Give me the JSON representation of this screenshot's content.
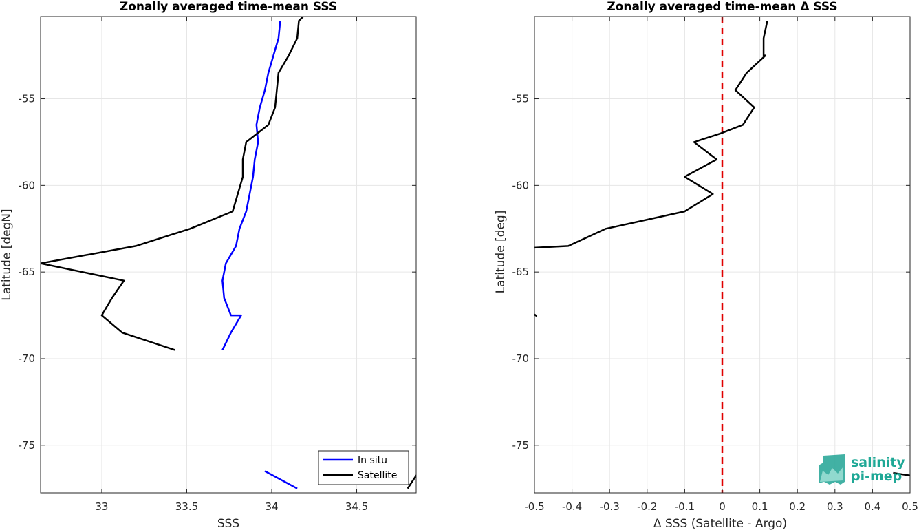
{
  "chart_data": [
    {
      "type": "line",
      "title": "Zonally averaged time-mean SSS",
      "xlabel": "SSS",
      "ylabel": "Latitude [degN]",
      "xlim": [
        32.64,
        34.85
      ],
      "ylim": [
        -77.75,
        -50.25
      ],
      "xticks": [
        33,
        33.5,
        34,
        34.5
      ],
      "xtick_labels": [
        "33",
        "33.5",
        "34",
        "34.5"
      ],
      "yticks": [
        -75,
        -70,
        -65,
        -60,
        -55
      ],
      "ytick_labels": [
        "-75",
        "-70",
        "-65",
        "-60",
        "-55"
      ],
      "grid": true,
      "legend_position": "bottom-right",
      "series": [
        {
          "name": "In situ",
          "color": "#0000ff",
          "segments": [
            {
              "x": [
                34.05,
                34.04,
                34.01,
                33.98,
                33.96,
                33.93,
                33.91,
                33.92,
                33.9,
                33.89,
                33.87,
                33.85,
                33.81,
                33.79,
                33.73,
                33.71,
                33.72,
                33.76,
                33.82,
                33.76,
                33.71
              ],
              "y": [
                -50.5,
                -51.5,
                -52.5,
                -53.5,
                -54.5,
                -55.5,
                -56.5,
                -57.5,
                -58.5,
                -59.5,
                -60.5,
                -61.5,
                -62.5,
                -63.5,
                -64.5,
                -65.5,
                -66.5,
                -67.5,
                -67.5,
                -68.5,
                -69.5
              ]
            },
            {
              "x": [
                33.96,
                34.15
              ],
              "y": [
                -76.5,
                -77.5
              ]
            }
          ]
        },
        {
          "name": "Satellite",
          "color": "#000000",
          "segments": [
            {
              "x": [
                34.21,
                34.16,
                34.15,
                34.1,
                34.04,
                34.02,
                33.98,
                33.85,
                33.83,
                33.83,
                33.77,
                33.52,
                33.2,
                32.64,
                33.13,
                33.06,
                33.0,
                33.12,
                33.43
              ],
              "y": [
                -50.0,
                -50.5,
                -51.5,
                -52.5,
                -53.5,
                -55.5,
                -56.5,
                -57.5,
                -58.5,
                -59.5,
                -61.5,
                -62.5,
                -63.5,
                -64.5,
                -65.5,
                -66.5,
                -67.5,
                -68.5,
                -69.5
              ]
            },
            {
              "x": [
                34.8,
                34.86
              ],
              "y": [
                -77.5,
                -76.6
              ]
            }
          ]
        }
      ]
    },
    {
      "type": "line",
      "title": "Zonally averaged time-mean Δ SSS",
      "xlabel": "Δ SSS (Satellite - Argo)",
      "ylabel": "Latitude [deg]",
      "xlim": [
        -0.5,
        0.5
      ],
      "ylim": [
        -77.75,
        -50.25
      ],
      "xticks": [
        -0.5,
        -0.4,
        -0.3,
        -0.2,
        -0.1,
        0,
        0.1,
        0.2,
        0.3,
        0.4,
        0.5
      ],
      "xtick_labels": [
        "-0.5",
        "-0.4",
        "-0.3",
        "-0.2",
        "-0.1",
        "0",
        "0.1",
        "0.2",
        "0.3",
        "0.4",
        "0.5"
      ],
      "yticks": [
        -75,
        -70,
        -65,
        -60,
        -55
      ],
      "ytick_labels": [
        "-75",
        "-70",
        "-65",
        "-60",
        "-55"
      ],
      "grid": true,
      "reference_line": {
        "x": 0,
        "color": "#e00000",
        "style": "dashed"
      },
      "series": [
        {
          "color": "#000000",
          "segments": [
            {
              "x": [
                0.12,
                0.11,
                0.11,
                0.115,
                0.065,
                0.035,
                0.085,
                0.055,
                -0.005,
                -0.075,
                -0.015,
                -0.1,
                -0.025,
                -0.1,
                -0.31,
                -0.41,
                -0.5
              ],
              "y": [
                -50.5,
                -51.5,
                -52.5,
                -52.5,
                -53.5,
                -54.5,
                -55.5,
                -56.5,
                -57.0,
                -57.5,
                -58.5,
                -59.5,
                -60.5,
                -61.5,
                -62.5,
                -63.5,
                -63.6
              ]
            },
            {
              "x": [
                -0.5,
                -0.494
              ],
              "y": [
                -67.45,
                -67.55
              ]
            },
            {
              "x": [
                0.455,
                0.5
              ],
              "y": [
                -76.6,
                -76.75
              ]
            }
          ]
        }
      ]
    }
  ],
  "legend": {
    "items": [
      {
        "label": "In situ",
        "color": "#0000ff"
      },
      {
        "label": "Satellite",
        "color": "#000000"
      }
    ]
  },
  "logo": {
    "line1": "salinity",
    "line2": "pi-mep"
  }
}
